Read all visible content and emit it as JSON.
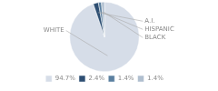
{
  "chart_data": {
    "type": "pie",
    "categories": [
      "WHITE",
      "A.I.",
      "HISPANIC",
      "BLACK"
    ],
    "values": [
      94.7,
      2.4,
      1.4,
      1.4
    ],
    "value_labels": [
      "94.7%",
      "2.4%",
      "1.4%",
      "1.4%"
    ],
    "colors": [
      "#d6dde8",
      "#2e4f73",
      "#5b80a0",
      "#b0bfcf"
    ],
    "legend": "bottom"
  }
}
